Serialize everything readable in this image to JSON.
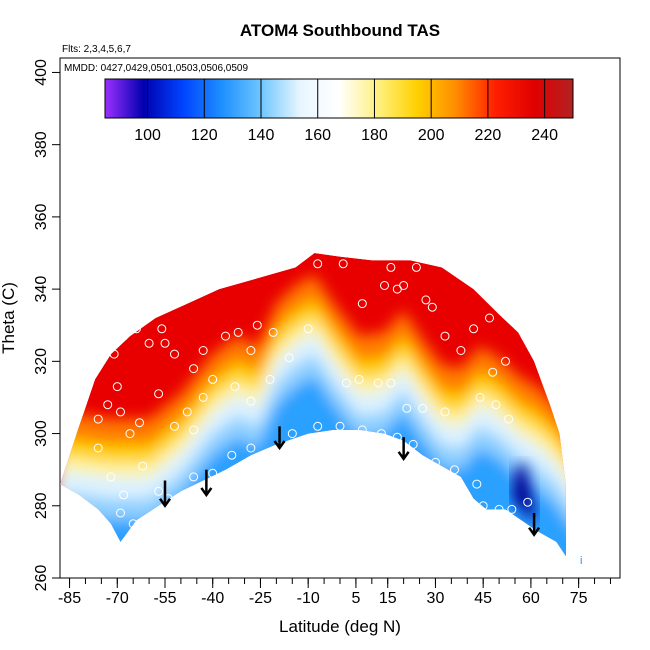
{
  "chart_data": {
    "type": "heatmap",
    "title": "ATOM4 Southbound TAS",
    "xlabel": "Latitude (deg N)",
    "ylabel": "Theta (C)",
    "flights_note": "Flts: 2,3,4,5,6,7",
    "dates_note": "MMDD: 0427,0429,0501,0503,0506,0509",
    "xlim": [
      -88,
      88
    ],
    "ylim": [
      260,
      404
    ],
    "x_ticks": [
      -85,
      -70,
      -55,
      -40,
      -25,
      -10,
      5,
      15,
      30,
      45,
      60,
      75
    ],
    "x_tick_labels": [
      "-85",
      "-70",
      "-55",
      "-40",
      "-25",
      "-10",
      "5",
      "15",
      "30",
      "45",
      "60",
      "75"
    ],
    "y_ticks": [
      260,
      280,
      300,
      320,
      340,
      360,
      380,
      400
    ],
    "y_tick_labels": [
      "260",
      "280",
      "300",
      "320",
      "340",
      "360",
      "380",
      "400"
    ],
    "colorbar": {
      "range": [
        85,
        250
      ],
      "ticks": [
        100,
        120,
        140,
        160,
        180,
        200,
        220,
        240
      ],
      "tick_labels": [
        "100",
        "120",
        "140",
        "160",
        "180",
        "200",
        "220",
        "240"
      ],
      "colors": [
        "#9b30ff",
        "#0000b0",
        "#0044ff",
        "#1e90ff",
        "#6ec6ff",
        "#e8f6ff",
        "#ffffff",
        "#fff080",
        "#ffd000",
        "#ff8c00",
        "#ff2000",
        "#e00000",
        "#b22222"
      ]
    },
    "envelope_bottom": [
      [
        -88,
        286
      ],
      [
        -82,
        283
      ],
      [
        -76,
        279
      ],
      [
        -72,
        275
      ],
      [
        -69,
        270
      ],
      [
        -64,
        276
      ],
      [
        -57,
        280
      ],
      [
        -50,
        284
      ],
      [
        -43,
        287
      ],
      [
        -36,
        290
      ],
      [
        -28,
        294
      ],
      [
        -20,
        297
      ],
      [
        -10,
        300
      ],
      [
        -2,
        301
      ],
      [
        6,
        301
      ],
      [
        14,
        300
      ],
      [
        20,
        298
      ],
      [
        26,
        294
      ],
      [
        32,
        291
      ],
      [
        38,
        288
      ],
      [
        42,
        282
      ],
      [
        46,
        279
      ],
      [
        52,
        279
      ],
      [
        57,
        276
      ],
      [
        62,
        273
      ],
      [
        68,
        270
      ],
      [
        71,
        266
      ]
    ],
    "envelope_top": [
      [
        -88,
        286
      ],
      [
        -82,
        302
      ],
      [
        -77,
        315
      ],
      [
        -72,
        322
      ],
      [
        -66,
        327
      ],
      [
        -58,
        332
      ],
      [
        -48,
        336
      ],
      [
        -38,
        340
      ],
      [
        -26,
        343
      ],
      [
        -14,
        346
      ],
      [
        -8,
        350
      ],
      [
        0,
        349
      ],
      [
        10,
        348
      ],
      [
        22,
        348
      ],
      [
        32,
        346
      ],
      [
        42,
        340
      ],
      [
        50,
        333
      ],
      [
        56,
        328
      ],
      [
        61,
        320
      ],
      [
        66,
        308
      ],
      [
        69,
        300
      ],
      [
        71,
        286
      ],
      [
        71,
        266
      ]
    ],
    "contour_low_axis": [
      [
        -88,
        290
      ],
      [
        -72,
        288
      ],
      [
        -60,
        288
      ],
      [
        -50,
        295
      ],
      [
        -40,
        306
      ],
      [
        -32,
        311
      ],
      [
        -26,
        308
      ],
      [
        -20,
        320
      ],
      [
        -14,
        325
      ],
      [
        -8,
        328
      ],
      [
        -2,
        320
      ],
      [
        6,
        311
      ],
      [
        14,
        312
      ],
      [
        20,
        318
      ],
      [
        26,
        310
      ],
      [
        32,
        303
      ],
      [
        38,
        302
      ],
      [
        44,
        308
      ],
      [
        50,
        305
      ],
      [
        56,
        300
      ],
      [
        62,
        297
      ],
      [
        68,
        292
      ],
      [
        71,
        288
      ]
    ],
    "cold_core": [
      [
        54,
        282
      ],
      [
        58,
        278
      ],
      [
        62,
        275
      ],
      [
        60,
        284
      ],
      [
        58,
        292
      ],
      [
        55,
        290
      ]
    ],
    "wind_arrows": [
      {
        "x": -55,
        "y_start": 287,
        "y_end": 280
      },
      {
        "x": -42,
        "y_start": 290,
        "y_end": 283
      },
      {
        "x": -19,
        "y_start": 302,
        "y_end": 296
      },
      {
        "x": 20,
        "y_start": 299,
        "y_end": 293
      },
      {
        "x": 61,
        "y_start": 278,
        "y_end": 272
      }
    ],
    "markers": [
      {
        "x": -81,
        "y": 321
      },
      {
        "x": -78,
        "y": 320
      },
      {
        "x": -71,
        "y": 322
      },
      {
        "x": -68,
        "y": 327
      },
      {
        "x": -67,
        "y": 331
      },
      {
        "x": -64,
        "y": 329
      },
      {
        "x": -62,
        "y": 333
      },
      {
        "x": -60,
        "y": 325
      },
      {
        "x": -56,
        "y": 329
      },
      {
        "x": -55,
        "y": 325
      },
      {
        "x": -52,
        "y": 322
      },
      {
        "x": -49,
        "y": 337
      },
      {
        "x": -46,
        "y": 318
      },
      {
        "x": -43,
        "y": 323
      },
      {
        "x": -36,
        "y": 327
      },
      {
        "x": -32,
        "y": 328
      },
      {
        "x": -28,
        "y": 323
      },
      {
        "x": -26,
        "y": 330
      },
      {
        "x": -21,
        "y": 328
      },
      {
        "x": -16,
        "y": 321
      },
      {
        "x": -10,
        "y": 329
      },
      {
        "x": -7,
        "y": 347
      },
      {
        "x": 1,
        "y": 347
      },
      {
        "x": 7,
        "y": 336
      },
      {
        "x": 14,
        "y": 341
      },
      {
        "x": 16,
        "y": 346
      },
      {
        "x": 18,
        "y": 340
      },
      {
        "x": 20,
        "y": 341
      },
      {
        "x": 24,
        "y": 346
      },
      {
        "x": 27,
        "y": 337
      },
      {
        "x": 29,
        "y": 335
      },
      {
        "x": 33,
        "y": 327
      },
      {
        "x": 38,
        "y": 323
      },
      {
        "x": 42,
        "y": 329
      },
      {
        "x": 47,
        "y": 332
      },
      {
        "x": 48,
        "y": 317
      },
      {
        "x": 52,
        "y": 320
      },
      {
        "x": 56,
        "y": 330
      },
      {
        "x": 58,
        "y": 328
      },
      {
        "x": -76,
        "y": 304
      },
      {
        "x": -73,
        "y": 308
      },
      {
        "x": -70,
        "y": 313
      },
      {
        "x": -69,
        "y": 306
      },
      {
        "x": -66,
        "y": 300
      },
      {
        "x": -63,
        "y": 303
      },
      {
        "x": -57,
        "y": 311
      },
      {
        "x": -52,
        "y": 302
      },
      {
        "x": -48,
        "y": 306
      },
      {
        "x": -46,
        "y": 301
      },
      {
        "x": -43,
        "y": 310
      },
      {
        "x": -40,
        "y": 315
      },
      {
        "x": -33,
        "y": 313
      },
      {
        "x": -28,
        "y": 309
      },
      {
        "x": -22,
        "y": 315
      },
      {
        "x": 2,
        "y": 314
      },
      {
        "x": 6,
        "y": 315
      },
      {
        "x": 12,
        "y": 314
      },
      {
        "x": 16,
        "y": 314
      },
      {
        "x": 21,
        "y": 307
      },
      {
        "x": 26,
        "y": 307
      },
      {
        "x": 33,
        "y": 306
      },
      {
        "x": 44,
        "y": 310
      },
      {
        "x": 49,
        "y": 308
      },
      {
        "x": 53,
        "y": 304
      },
      {
        "x": -76,
        "y": 296
      },
      {
        "x": -72,
        "y": 288
      },
      {
        "x": -68,
        "y": 283
      },
      {
        "x": -62,
        "y": 291
      },
      {
        "x": -57,
        "y": 284
      },
      {
        "x": -54,
        "y": 282
      },
      {
        "x": -46,
        "y": 288
      },
      {
        "x": -40,
        "y": 289
      },
      {
        "x": -34,
        "y": 294
      },
      {
        "x": -28,
        "y": 296
      },
      {
        "x": -15,
        "y": 300
      },
      {
        "x": -7,
        "y": 302
      },
      {
        "x": 0,
        "y": 302
      },
      {
        "x": 7,
        "y": 301
      },
      {
        "x": 13,
        "y": 300
      },
      {
        "x": 18,
        "y": 299
      },
      {
        "x": 23,
        "y": 297
      },
      {
        "x": 30,
        "y": 292
      },
      {
        "x": 36,
        "y": 290
      },
      {
        "x": 43,
        "y": 286
      },
      {
        "x": -69,
        "y": 278
      },
      {
        "x": -65,
        "y": 275
      },
      {
        "x": -51,
        "y": 282
      },
      {
        "x": -39,
        "y": 287
      },
      {
        "x": 45,
        "y": 280
      },
      {
        "x": 50,
        "y": 279
      },
      {
        "x": 54,
        "y": 279
      },
      {
        "x": 59,
        "y": 281
      }
    ],
    "edge_marker": "i"
  }
}
